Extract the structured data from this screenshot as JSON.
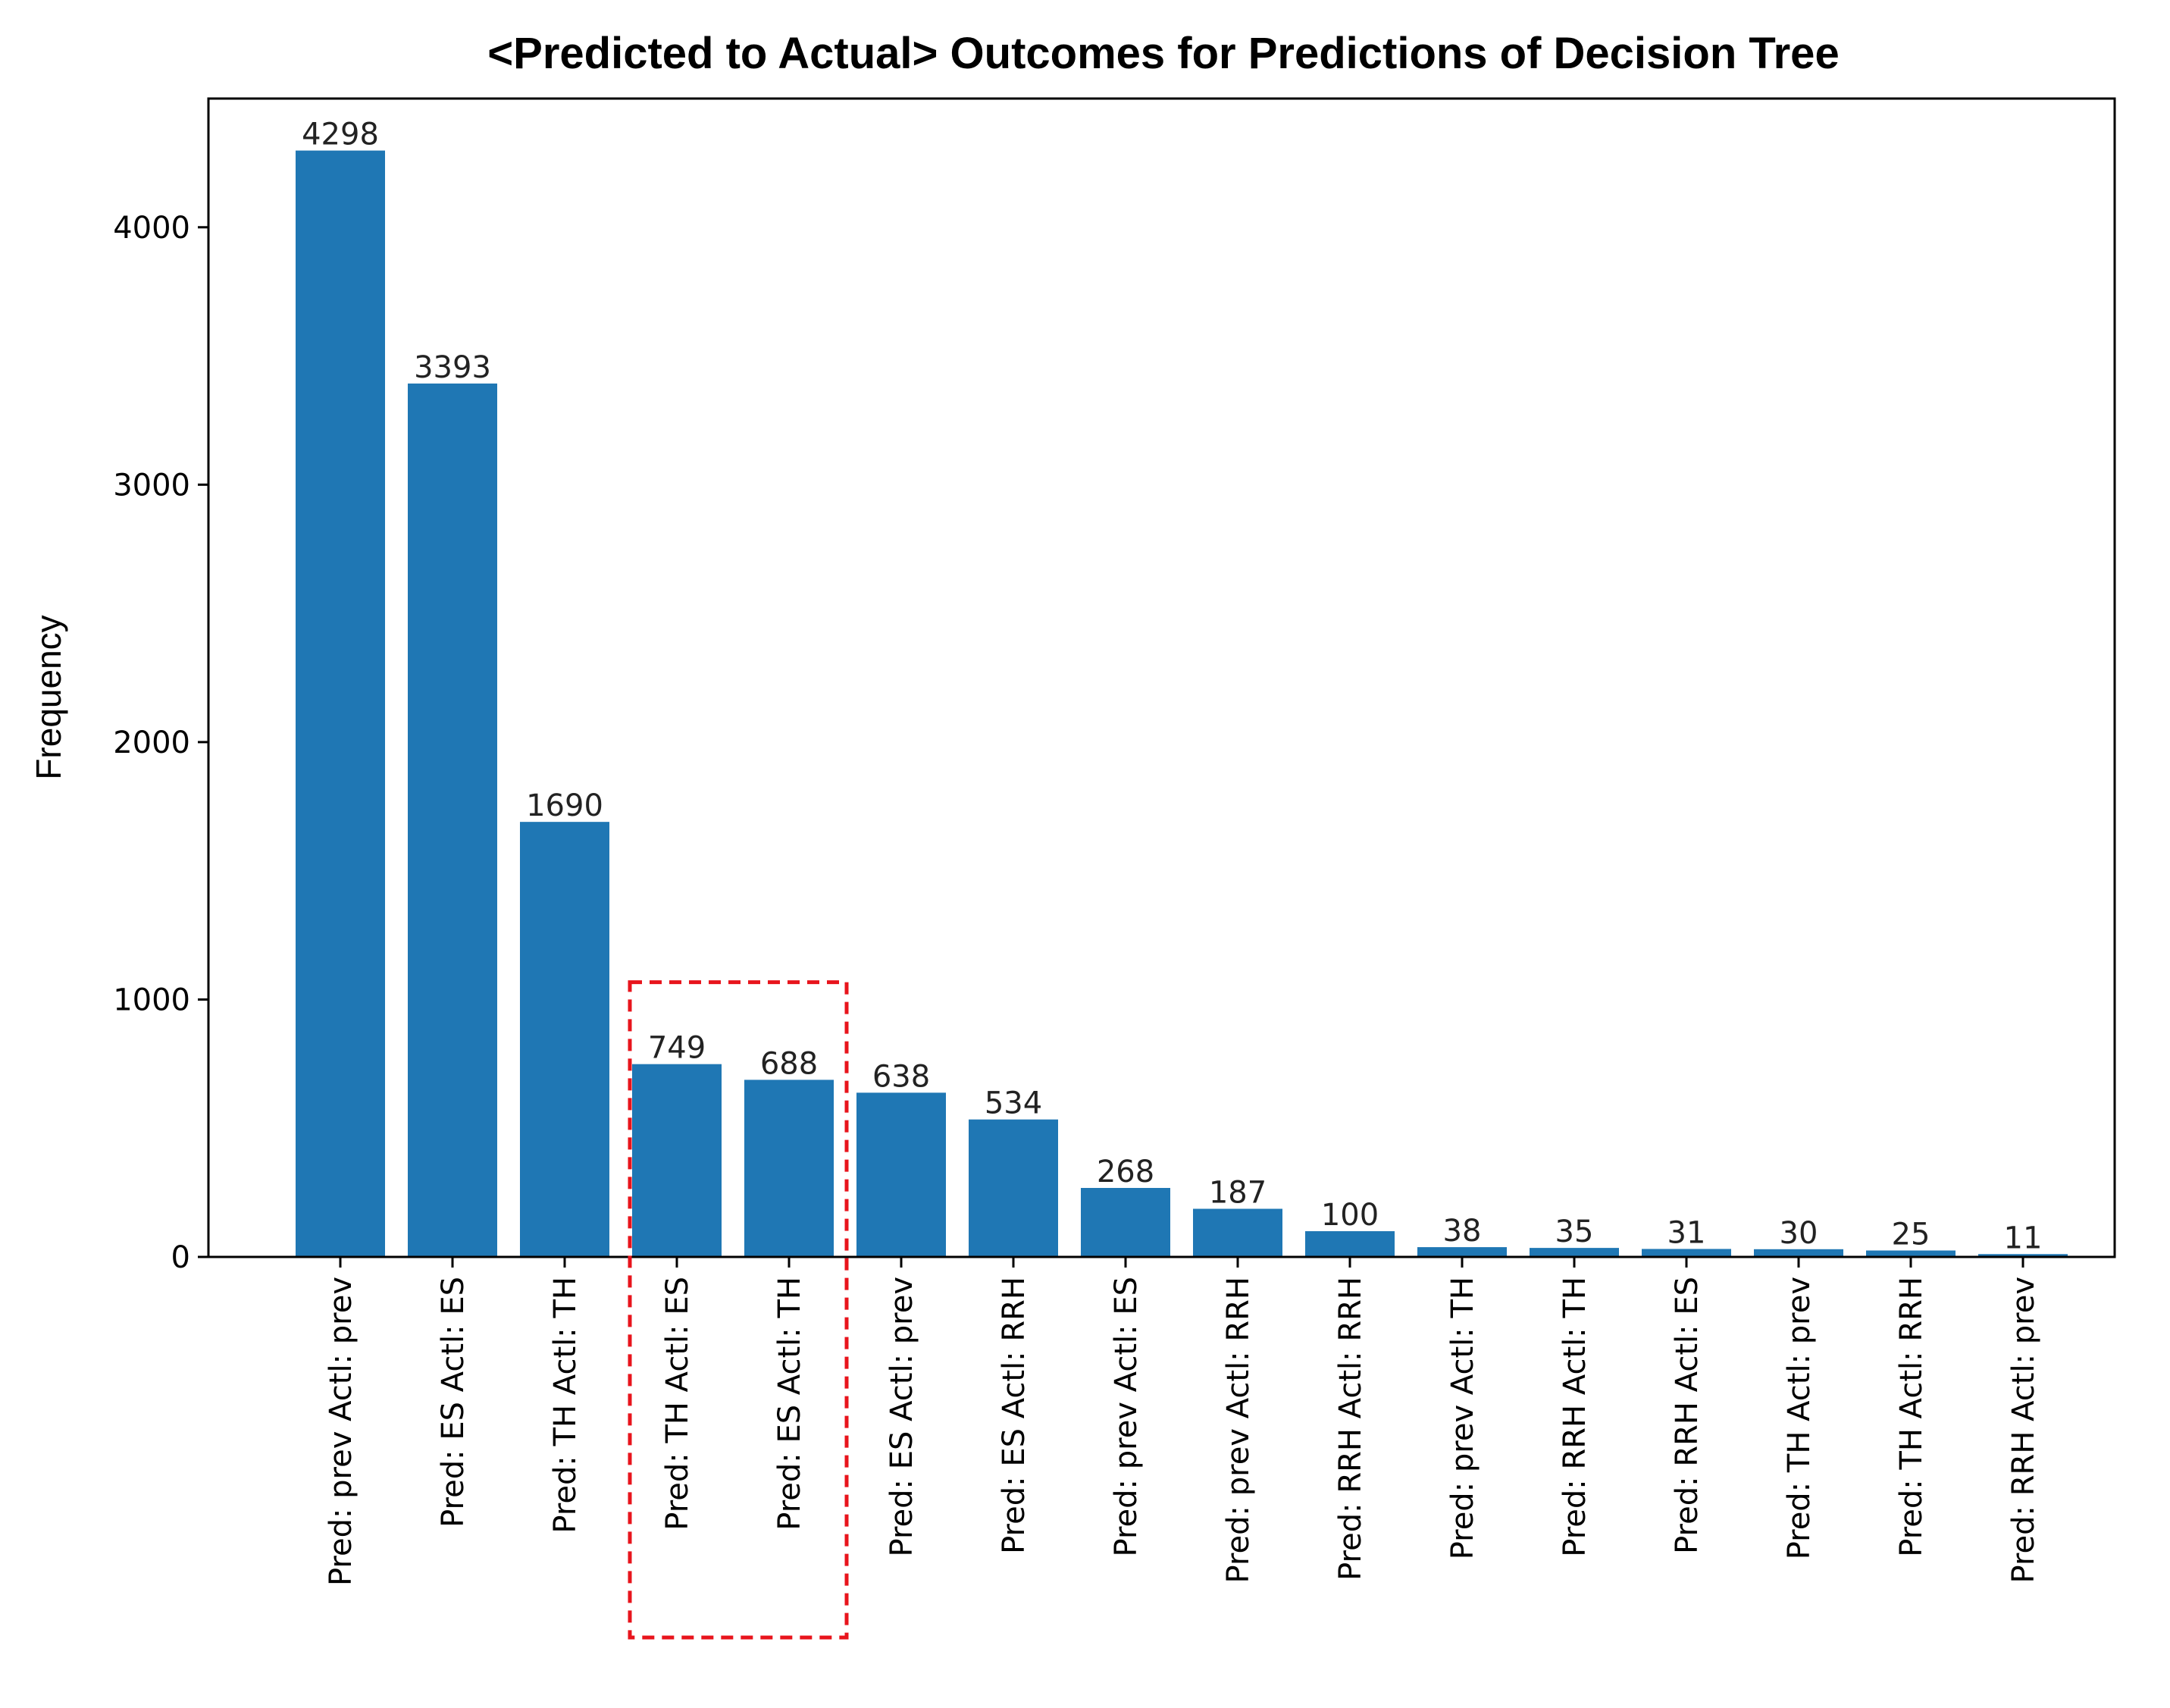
{
  "chart_data": {
    "type": "bar",
    "title": "<Predicted to Actual> Outcomes for Predictions of Decision Tree",
    "xlabel": "",
    "ylabel": "Frequency",
    "ylim": [
      0,
      4500
    ],
    "yticks": [
      0,
      1000,
      2000,
      3000,
      4000
    ],
    "grid": false,
    "bar_color": "#1f77b4",
    "highlight_color": "#e8141c",
    "highlight_categories": [
      "Pred: TH Actl: ES",
      "Pred: ES Actl: TH"
    ],
    "categories": [
      "Pred: prev Actl: prev",
      "Pred: ES Actl: ES",
      "Pred: TH Actl: TH",
      "Pred: TH Actl: ES",
      "Pred: ES Actl: TH",
      "Pred: ES Actl: prev",
      "Pred: ES Actl: RRH",
      "Pred: prev Actl: ES",
      "Pred: prev Actl: RRH",
      "Pred: RRH Actl: RRH",
      "Pred: prev Actl: TH",
      "Pred: RRH Actl: TH",
      "Pred: RRH Actl: ES",
      "Pred: TH Actl: prev",
      "Pred: TH Actl: RRH",
      "Pred: RRH Actl: prev"
    ],
    "values": [
      4298,
      3393,
      1690,
      749,
      688,
      638,
      534,
      268,
      187,
      100,
      38,
      35,
      31,
      30,
      25,
      11
    ]
  }
}
